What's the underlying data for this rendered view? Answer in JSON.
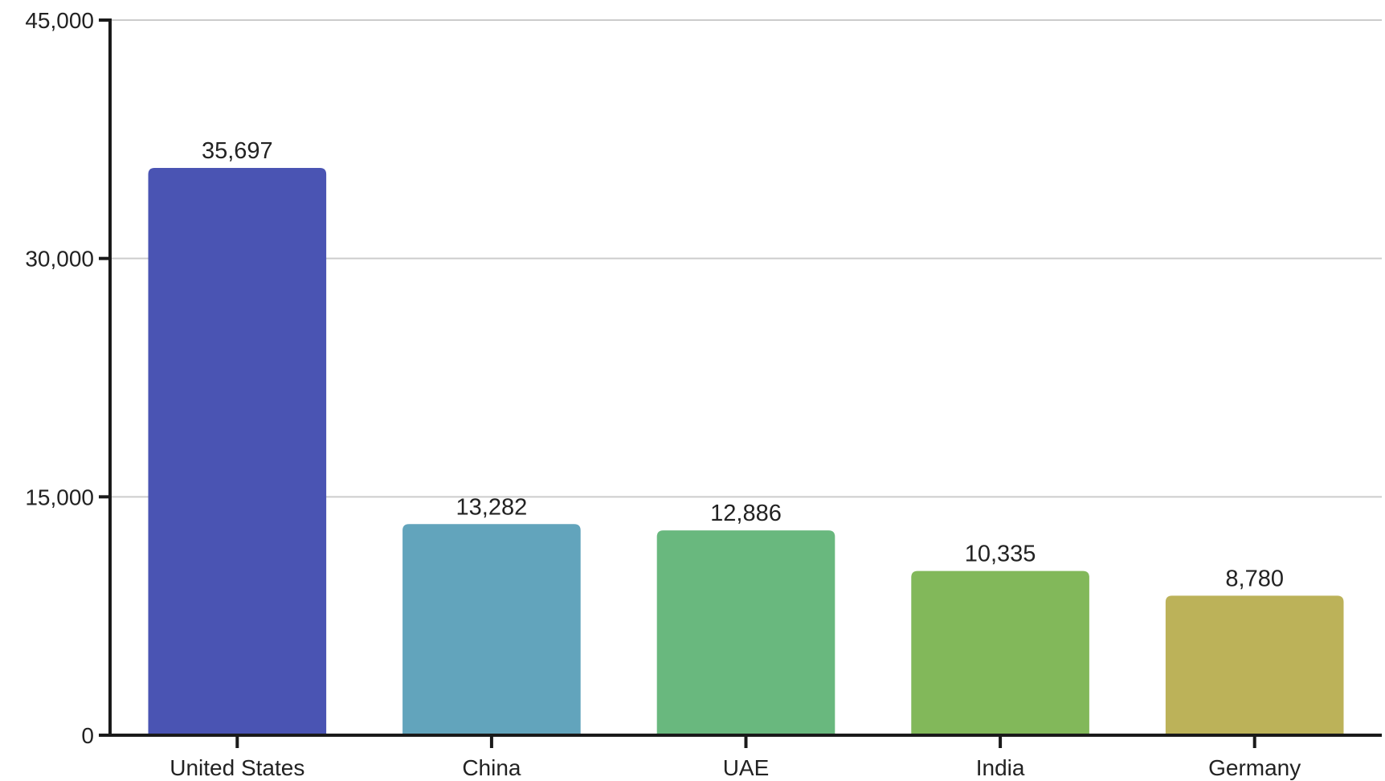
{
  "chart_data": {
    "type": "bar",
    "title": "",
    "xlabel": "",
    "ylabel": "",
    "categories": [
      "United States",
      "China",
      "UAE",
      "India",
      "Germany"
    ],
    "values": [
      35697,
      13282,
      12886,
      10335,
      8780
    ],
    "value_labels": [
      "35,697",
      "13,282",
      "12,886",
      "10,335",
      "8,780"
    ],
    "colors": [
      "#4A54B3",
      "#62A4BC",
      "#69B87E",
      "#82B85A",
      "#BCB259"
    ],
    "ylim": [
      0,
      45000
    ],
    "yticks": [
      0,
      15000,
      30000,
      45000
    ],
    "ytick_labels": [
      "0",
      "15,000",
      "30,000",
      "45,000"
    ],
    "grid": true,
    "legend": "none"
  }
}
